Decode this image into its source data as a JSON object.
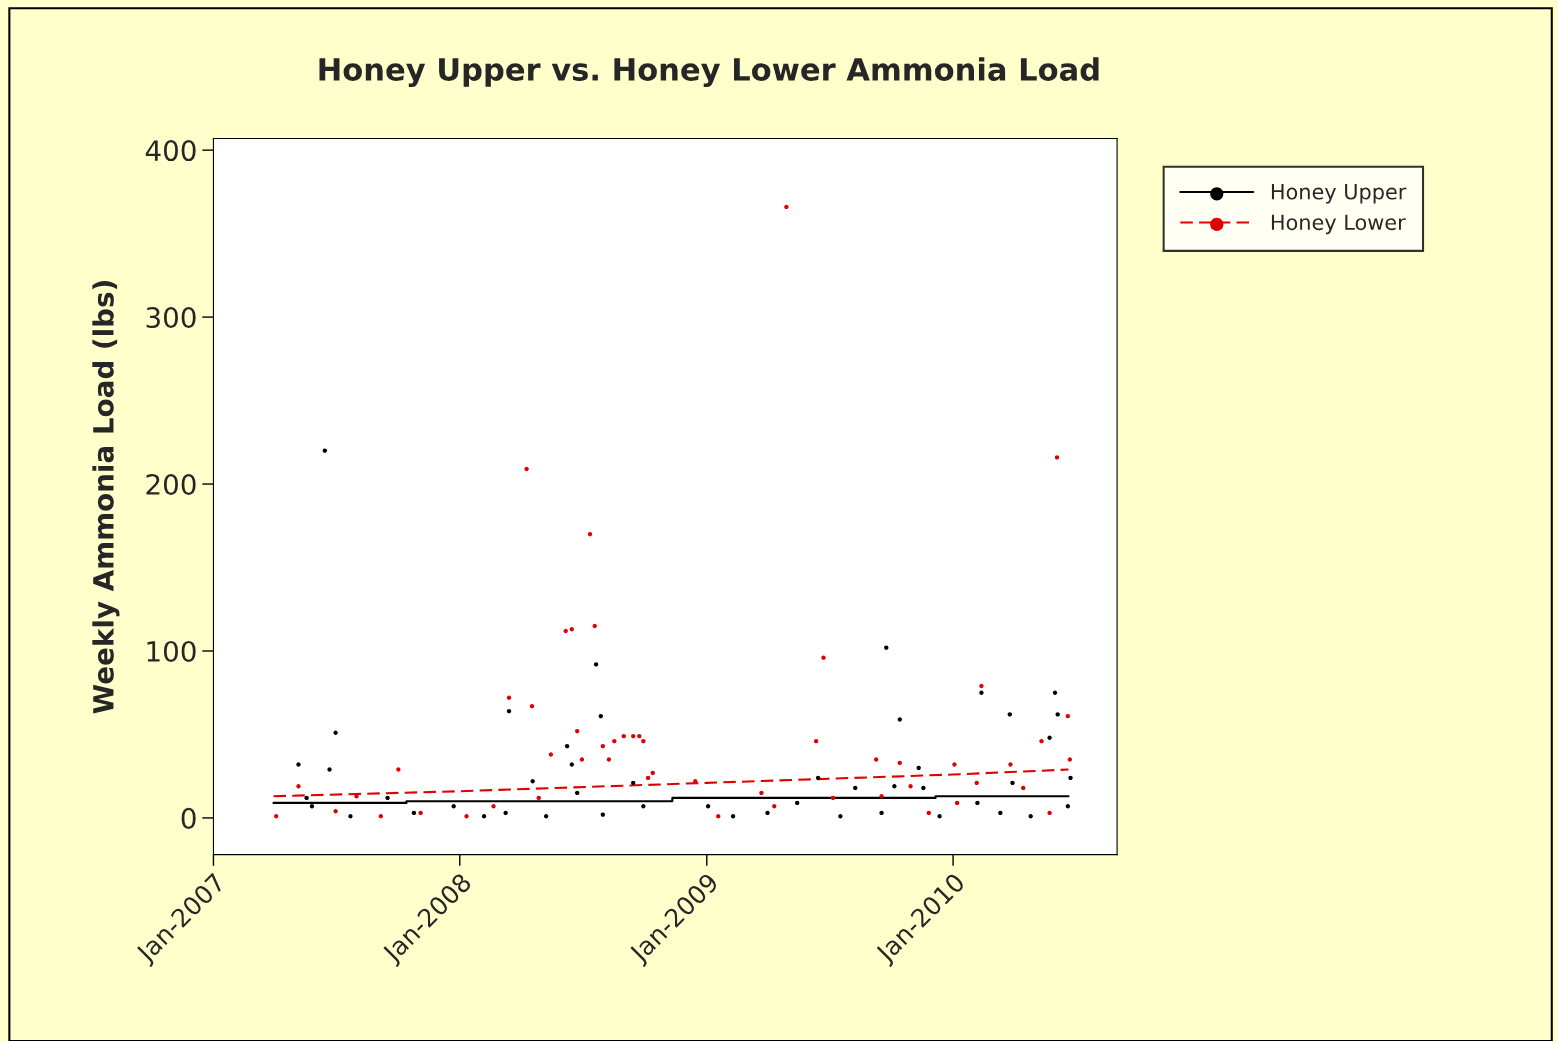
{
  "chart_data": {
    "type": "scatter",
    "title": "Honey Upper vs. Honey Lower Ammonia Load",
    "ylabel": "Weekly Ammonia Load (lbs)",
    "xlim": [
      "2007-01-01",
      "2010-09-01"
    ],
    "ylim": [
      -22,
      407
    ],
    "xticks": [
      {
        "value": "2007-01-01",
        "label": "Jan-2007"
      },
      {
        "value": "2008-01-01",
        "label": "Jan-2008"
      },
      {
        "value": "2009-01-01",
        "label": "Jan-2009"
      },
      {
        "value": "2010-01-01",
        "label": "Jan-2010"
      }
    ],
    "yticks": [
      0,
      100,
      200,
      300,
      400
    ],
    "grid": false,
    "legend": "top right",
    "series": [
      {
        "name": "Honey Upper",
        "marker": "circle",
        "color": "#000000",
        "x": [
          "2007-05-07",
          "2007-05-19",
          "2007-05-27",
          "2007-06-15",
          "2007-06-22",
          "2007-07-01",
          "2007-07-23",
          "2007-09-16",
          "2007-10-25",
          "2007-12-23",
          "2008-02-06",
          "2008-03-09",
          "2008-03-14",
          "2008-04-18",
          "2008-05-08",
          "2008-06-08",
          "2008-06-15",
          "2008-06-23",
          "2008-07-21",
          "2008-07-28",
          "2008-07-31",
          "2008-09-14",
          "2008-09-29",
          "2009-01-03",
          "2009-02-09",
          "2009-04-01",
          "2009-05-15",
          "2009-06-15",
          "2009-07-18",
          "2009-08-09",
          "2009-09-17",
          "2009-09-24",
          "2009-10-06",
          "2009-10-14",
          "2009-11-11",
          "2009-11-18",
          "2009-12-12",
          "2010-02-06",
          "2010-02-12",
          "2010-03-12",
          "2010-03-26",
          "2010-03-30",
          "2010-04-26",
          "2010-05-24",
          "2010-06-01",
          "2010-06-05",
          "2010-06-20",
          "2010-06-24"
        ],
        "values": [
          32,
          12,
          7,
          220,
          29,
          51,
          1,
          12,
          3,
          7,
          1,
          3,
          64,
          22,
          1,
          43,
          32,
          15,
          92,
          61,
          2,
          21,
          7,
          7,
          1,
          3,
          9,
          24,
          1,
          18,
          3,
          102,
          19,
          59,
          30,
          18,
          1,
          9,
          75,
          3,
          62,
          21,
          1,
          48,
          75,
          62,
          7,
          24
        ]
      },
      {
        "name": "Honey Lower",
        "marker": "circle",
        "color": "#e00000",
        "x": [
          "2007-04-04",
          "2007-05-07",
          "2007-07-01",
          "2007-08-01",
          "2007-09-06",
          "2007-10-02",
          "2007-11-04",
          "2008-01-11",
          "2008-02-20",
          "2008-03-14",
          "2008-04-09",
          "2008-04-17",
          "2008-04-27",
          "2008-05-15",
          "2008-06-06",
          "2008-06-15",
          "2008-06-23",
          "2008-06-30",
          "2008-07-12",
          "2008-07-19",
          "2008-07-31",
          "2008-08-09",
          "2008-08-17",
          "2008-08-31",
          "2008-09-14",
          "2008-09-23",
          "2008-09-29",
          "2008-10-06",
          "2008-10-13",
          "2008-12-15",
          "2009-01-18",
          "2009-03-23",
          "2009-04-11",
          "2009-04-29",
          "2009-06-12",
          "2009-06-23",
          "2009-07-07",
          "2009-09-09",
          "2009-09-17",
          "2009-10-14",
          "2009-10-30",
          "2009-11-26",
          "2010-01-03",
          "2010-01-07",
          "2010-02-05",
          "2010-02-12",
          "2010-03-27",
          "2010-04-15",
          "2010-05-12",
          "2010-05-24",
          "2010-06-04",
          "2010-06-20",
          "2010-06-23"
        ],
        "values": [
          1,
          19,
          4,
          13,
          1,
          29,
          3,
          1,
          7,
          72,
          209,
          67,
          12,
          38,
          112,
          113,
          52,
          35,
          170,
          115,
          43,
          35,
          46,
          49,
          49,
          49,
          46,
          24,
          27,
          22,
          1,
          15,
          7,
          366,
          46,
          96,
          12,
          35,
          13,
          33,
          19,
          3,
          32,
          9,
          21,
          79,
          32,
          18,
          46,
          3,
          216,
          61,
          35
        ]
      },
      {
        "type": "line",
        "marker": "none",
        "line_style": "solid",
        "color": "#000000",
        "x": [
          "2007-03-31",
          "2007-10-14",
          "2007-10-14",
          "2008-11-11",
          "2008-11-11",
          "2009-12-06",
          "2009-12-06",
          "2010-06-21"
        ],
        "values": [
          9,
          9,
          10,
          10,
          12,
          12,
          13,
          13
        ]
      },
      {
        "type": "line",
        "marker": "none",
        "line_style": "dashed",
        "color": "#e00000",
        "x": [
          "2007-03-31",
          "2008-01-01",
          "2009-01-01",
          "2010-01-01",
          "2010-06-21"
        ],
        "values": [
          13,
          16,
          21,
          26,
          29
        ]
      }
    ]
  }
}
